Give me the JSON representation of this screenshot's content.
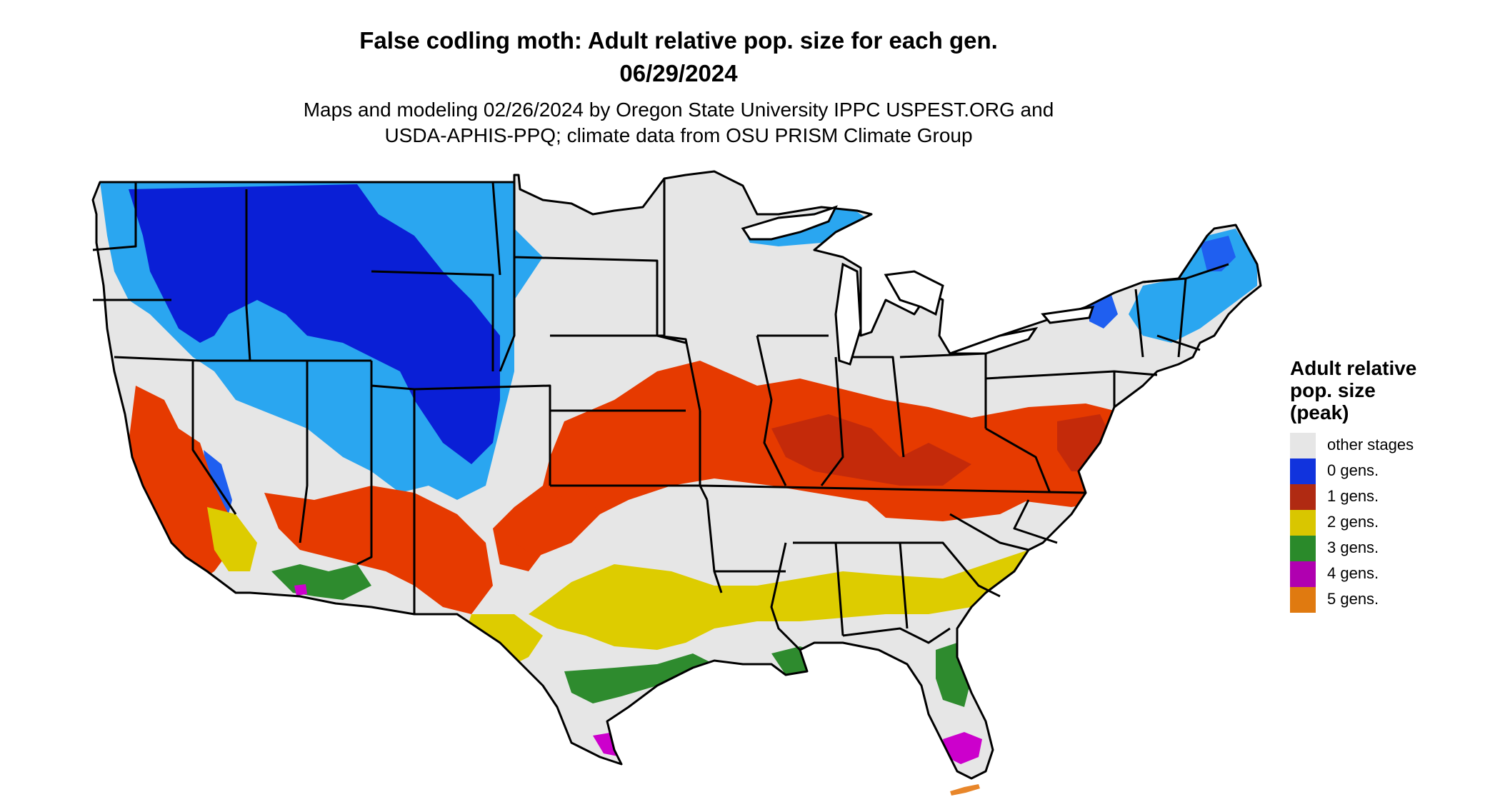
{
  "map": {
    "title_line1": "False codling moth: Adult relative pop. size for each gen.",
    "title_line2": "06/29/2024",
    "subtitle_line1": "Maps and modeling 02/26/2024 by Oregon State University IPPC USPEST.ORG and",
    "subtitle_line2": "USDA-APHIS-PPQ; climate data from OSU PRISM Climate Group",
    "region": "contiguous United States",
    "land_color": "#e6e6e6",
    "border_color": "#000000"
  },
  "legend": {
    "title_line1": "Adult relative",
    "title_line2": "pop. size",
    "title_line3": "(peak)",
    "items": [
      {
        "label": "other stages",
        "color": "#e6e6e6"
      },
      {
        "label": "0 gens.",
        "color": "#1133dd"
      },
      {
        "label": "1 gens.",
        "color": "#b02a12"
      },
      {
        "label": "2 gens.",
        "color": "#d9c600"
      },
      {
        "label": "3 gens.",
        "color": "#2a8a2a"
      },
      {
        "label": "4 gens.",
        "color": "#b000b0"
      },
      {
        "label": "5 gens.",
        "color": "#e07a10"
      }
    ]
  },
  "zone_colors": {
    "zero_gen_dark": "#0a1fd6",
    "zero_gen_mid": "#1f5ff0",
    "zero_gen_light": "#2aa6f0",
    "one_gen_orange": "#e63a00",
    "one_gen_red": "#c42a0a",
    "two_gen": "#ddcc00",
    "three_gen": "#2e8b2e",
    "three_gen_light": "#7fcf6a",
    "four_gen": "#cc00cc",
    "five_gen": "#e8862a"
  }
}
